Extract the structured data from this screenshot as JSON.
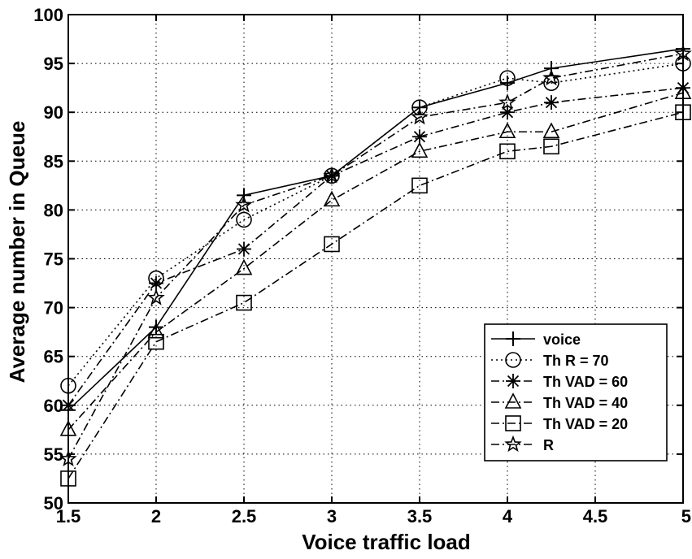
{
  "chart_data": {
    "type": "line",
    "title": "",
    "xlabel": "Voice traffic load",
    "ylabel": "Average number in Queue",
    "xlim": [
      1.5,
      5
    ],
    "ylim": [
      50,
      100
    ],
    "xticks": [
      "1.5",
      "2",
      "2.5",
      "3",
      "3.5",
      "4",
      "4.5",
      "5"
    ],
    "xtick_values": [
      1.5,
      2,
      2.5,
      3,
      3.5,
      4,
      4.5,
      5
    ],
    "yticks": [
      "50",
      "55",
      "60",
      "65",
      "70",
      "75",
      "80",
      "85",
      "90",
      "95",
      "100"
    ],
    "ytick_values": [
      50,
      55,
      60,
      65,
      70,
      75,
      80,
      85,
      90,
      95,
      100
    ],
    "grid": true,
    "legend_position": "bottom-right",
    "series": [
      {
        "name": "voice",
        "marker": "plus",
        "dash": "solid",
        "x": [
          1.5,
          2,
          2.5,
          3,
          3.5,
          4,
          4.25,
          5
        ],
        "y": [
          59.5,
          68,
          81.5,
          83.5,
          90.5,
          93,
          94.5,
          96.5
        ]
      },
      {
        "name": "Th R = 70",
        "marker": "circle",
        "dash": "dotted",
        "x": [
          1.5,
          2,
          2.5,
          3,
          3.5,
          4,
          4.25,
          5
        ],
        "y": [
          62,
          73,
          79,
          83.5,
          90.5,
          93.5,
          93,
          95
        ]
      },
      {
        "name": "Th VAD = 60",
        "marker": "asterisk",
        "dash": "dashdot",
        "x": [
          1.5,
          2,
          2.5,
          3,
          3.5,
          4,
          4.25,
          5
        ],
        "y": [
          60,
          72.5,
          76,
          83.5,
          87.5,
          90,
          91,
          92.5
        ]
      },
      {
        "name": "Th VAD = 40",
        "marker": "triangle",
        "dash": "dashdot",
        "x": [
          1.5,
          2,
          2.5,
          3,
          3.5,
          4,
          4.25,
          5
        ],
        "y": [
          57.5,
          67.5,
          74,
          81,
          86,
          88,
          88,
          92
        ]
      },
      {
        "name": "Th VAD = 20",
        "marker": "square",
        "dash": "dashdot",
        "x": [
          1.5,
          2,
          2.5,
          3,
          3.5,
          4,
          4.25,
          5
        ],
        "y": [
          52.5,
          66.5,
          70.5,
          76.5,
          82.5,
          86,
          86.5,
          90
        ]
      },
      {
        "name": "R",
        "marker": "star",
        "dash": "dashdot",
        "x": [
          1.5,
          2,
          2.5,
          3,
          3.5,
          4,
          4.25,
          5
        ],
        "y": [
          54.5,
          71,
          80.5,
          83.5,
          89.5,
          91,
          93.5,
          96
        ]
      }
    ],
    "colors": {
      "line": "#000000",
      "grid": "#000000",
      "background": "#ffffff"
    }
  }
}
